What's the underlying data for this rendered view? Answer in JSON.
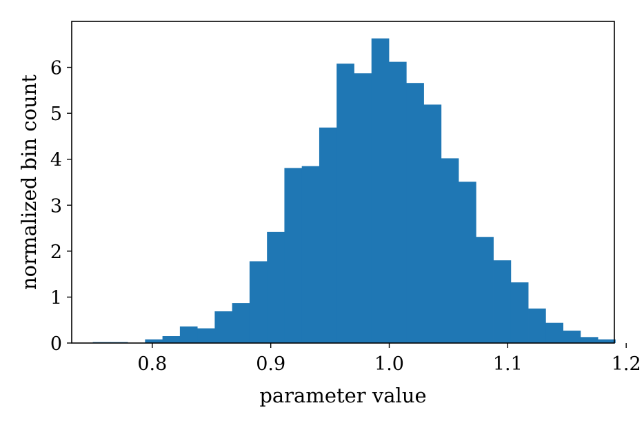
{
  "chart_data": {
    "type": "bar",
    "subtype": "histogram",
    "title": "",
    "xlabel": "parameter value",
    "ylabel": "normalized bin count",
    "xlim": [
      0.732,
      1.19
    ],
    "ylim": [
      0,
      7.0
    ],
    "x_ticks": [
      0.8,
      0.9,
      1.0,
      1.1,
      1.2
    ],
    "x_tick_labels": [
      "0.8",
      "0.9",
      "1.0",
      "1.1",
      "1.2"
    ],
    "y_ticks": [
      0,
      1,
      2,
      3,
      4,
      5,
      6
    ],
    "y_tick_labels": [
      "0",
      "1",
      "2",
      "3",
      "4",
      "5",
      "6"
    ],
    "bar_color": "#1f77b4",
    "grid": false,
    "legend": "none",
    "bins": [
      {
        "x0": 0.7498,
        "x1": 0.7645,
        "value": 0.02
      },
      {
        "x0": 0.7645,
        "x1": 0.7792,
        "value": 0.02
      },
      {
        "x0": 0.7792,
        "x1": 0.7939,
        "value": 0.0
      },
      {
        "x0": 0.7939,
        "x1": 0.8086,
        "value": 0.08
      },
      {
        "x0": 0.8086,
        "x1": 0.8233,
        "value": 0.15
      },
      {
        "x0": 0.8233,
        "x1": 0.838,
        "value": 0.36
      },
      {
        "x0": 0.838,
        "x1": 0.8527,
        "value": 0.32
      },
      {
        "x0": 0.8527,
        "x1": 0.8674,
        "value": 0.69
      },
      {
        "x0": 0.8674,
        "x1": 0.8821,
        "value": 0.87
      },
      {
        "x0": 0.8821,
        "x1": 0.8968,
        "value": 1.78
      },
      {
        "x0": 0.8968,
        "x1": 0.9115,
        "value": 2.42
      },
      {
        "x0": 0.9115,
        "x1": 0.9262,
        "value": 3.81
      },
      {
        "x0": 0.9262,
        "x1": 0.9409,
        "value": 3.85
      },
      {
        "x0": 0.9409,
        "x1": 0.9556,
        "value": 4.69
      },
      {
        "x0": 0.9556,
        "x1": 0.9703,
        "value": 6.08
      },
      {
        "x0": 0.9703,
        "x1": 0.985,
        "value": 5.87
      },
      {
        "x0": 0.985,
        "x1": 0.9997,
        "value": 6.63
      },
      {
        "x0": 0.9997,
        "x1": 1.0144,
        "value": 6.12
      },
      {
        "x0": 1.0144,
        "x1": 1.0291,
        "value": 5.66
      },
      {
        "x0": 1.0291,
        "x1": 1.0438,
        "value": 5.19
      },
      {
        "x0": 1.0438,
        "x1": 1.0585,
        "value": 4.02
      },
      {
        "x0": 1.0585,
        "x1": 1.0732,
        "value": 3.51
      },
      {
        "x0": 1.0732,
        "x1": 1.0879,
        "value": 2.31
      },
      {
        "x0": 1.0879,
        "x1": 1.1026,
        "value": 1.8
      },
      {
        "x0": 1.1026,
        "x1": 1.1173,
        "value": 1.32
      },
      {
        "x0": 1.1173,
        "x1": 1.132,
        "value": 0.75
      },
      {
        "x0": 1.132,
        "x1": 1.1467,
        "value": 0.44
      },
      {
        "x0": 1.1467,
        "x1": 1.1614,
        "value": 0.27
      },
      {
        "x0": 1.1614,
        "x1": 1.1761,
        "value": 0.13
      },
      {
        "x0": 1.1761,
        "x1": 1.1908,
        "value": 0.08
      }
    ]
  }
}
